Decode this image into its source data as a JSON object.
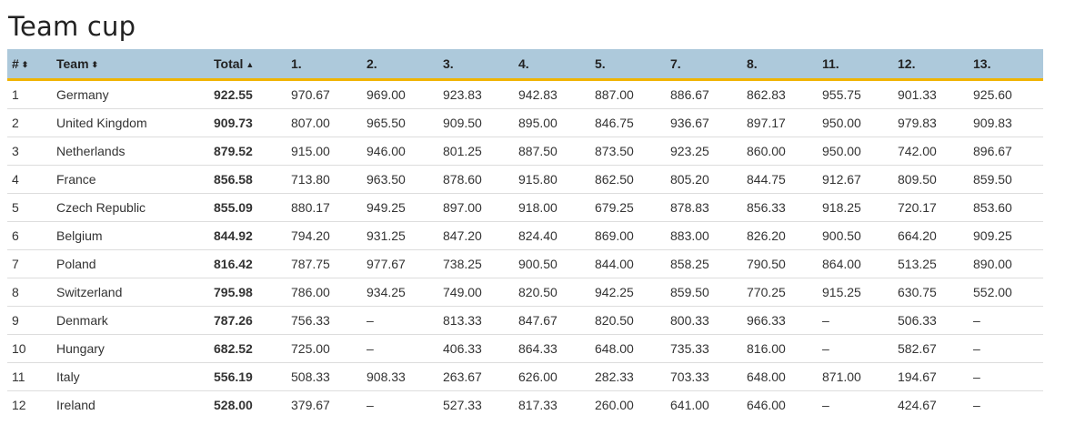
{
  "title": "Team cup",
  "table": {
    "headers": {
      "rank": "#",
      "team": "Team",
      "total": "Total"
    },
    "sort_icons": {
      "rank": "⬍",
      "team": "⬍",
      "total": "▲"
    },
    "rounds": [
      "1.",
      "2.",
      "3.",
      "4.",
      "5.",
      "7.",
      "8.",
      "11.",
      "12.",
      "13."
    ],
    "rows": [
      {
        "rank": "1",
        "team": "Germany",
        "total": "922.55",
        "scores": [
          "970.67",
          "969.00",
          "923.83",
          "942.83",
          "887.00",
          "886.67",
          "862.83",
          "955.75",
          "901.33",
          "925.60"
        ]
      },
      {
        "rank": "2",
        "team": "United Kingdom",
        "total": "909.73",
        "scores": [
          "807.00",
          "965.50",
          "909.50",
          "895.00",
          "846.75",
          "936.67",
          "897.17",
          "950.00",
          "979.83",
          "909.83"
        ]
      },
      {
        "rank": "3",
        "team": "Netherlands",
        "total": "879.52",
        "scores": [
          "915.00",
          "946.00",
          "801.25",
          "887.50",
          "873.50",
          "923.25",
          "860.00",
          "950.00",
          "742.00",
          "896.67"
        ]
      },
      {
        "rank": "4",
        "team": "France",
        "total": "856.58",
        "scores": [
          "713.80",
          "963.50",
          "878.60",
          "915.80",
          "862.50",
          "805.20",
          "844.75",
          "912.67",
          "809.50",
          "859.50"
        ]
      },
      {
        "rank": "5",
        "team": "Czech Republic",
        "total": "855.09",
        "scores": [
          "880.17",
          "949.25",
          "897.00",
          "918.00",
          "679.25",
          "878.83",
          "856.33",
          "918.25",
          "720.17",
          "853.60"
        ]
      },
      {
        "rank": "6",
        "team": "Belgium",
        "total": "844.92",
        "scores": [
          "794.20",
          "931.25",
          "847.20",
          "824.40",
          "869.00",
          "883.00",
          "826.20",
          "900.50",
          "664.20",
          "909.25"
        ]
      },
      {
        "rank": "7",
        "team": "Poland",
        "total": "816.42",
        "scores": [
          "787.75",
          "977.67",
          "738.25",
          "900.50",
          "844.00",
          "858.25",
          "790.50",
          "864.00",
          "513.25",
          "890.00"
        ]
      },
      {
        "rank": "8",
        "team": "Switzerland",
        "total": "795.98",
        "scores": [
          "786.00",
          "934.25",
          "749.00",
          "820.50",
          "942.25",
          "859.50",
          "770.25",
          "915.25",
          "630.75",
          "552.00"
        ]
      },
      {
        "rank": "9",
        "team": "Denmark",
        "total": "787.26",
        "scores": [
          "756.33",
          "–",
          "813.33",
          "847.67",
          "820.50",
          "800.33",
          "966.33",
          "–",
          "506.33",
          "–"
        ]
      },
      {
        "rank": "10",
        "team": "Hungary",
        "total": "682.52",
        "scores": [
          "725.00",
          "–",
          "406.33",
          "864.33",
          "648.00",
          "735.33",
          "816.00",
          "–",
          "582.67",
          "–"
        ]
      },
      {
        "rank": "11",
        "team": "Italy",
        "total": "556.19",
        "scores": [
          "508.33",
          "908.33",
          "263.67",
          "626.00",
          "282.33",
          "703.33",
          "648.00",
          "871.00",
          "194.67",
          "–"
        ]
      },
      {
        "rank": "12",
        "team": "Ireland",
        "total": "528.00",
        "scores": [
          "379.67",
          "–",
          "527.33",
          "817.33",
          "260.00",
          "641.00",
          "646.00",
          "–",
          "424.67",
          "–"
        ]
      }
    ]
  }
}
